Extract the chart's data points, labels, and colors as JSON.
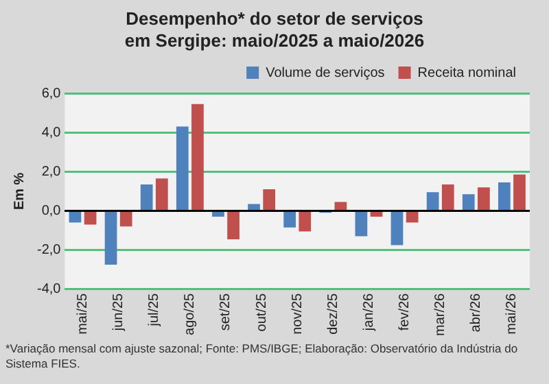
{
  "chart_data": {
    "type": "bar",
    "title": "Desempenho* do setor de serviços em Sergipe: maio/2025 a maio/2026",
    "ylabel": "Em %",
    "categories": [
      "mai/25",
      "jun/25",
      "jul/25",
      "ago/25",
      "set/25",
      "out/25",
      "nov/25",
      "dez/25",
      "jan/26",
      "fev/26",
      "mar/26",
      "abr/26",
      "mai/26"
    ],
    "series": [
      {
        "name": "Volume de serviços",
        "color": "#4f81bd",
        "values": [
          -0.6,
          -2.75,
          1.35,
          4.3,
          -0.3,
          0.35,
          -0.85,
          -0.1,
          -1.3,
          -1.75,
          0.95,
          0.85,
          1.45
        ]
      },
      {
        "name": "Receita nominal",
        "color": "#c0504d",
        "values": [
          -0.7,
          -0.8,
          1.65,
          5.45,
          -1.45,
          1.1,
          -1.05,
          0.45,
          -0.3,
          -0.6,
          1.35,
          1.2,
          1.85
        ]
      }
    ],
    "ylim": [
      -4,
      6
    ],
    "yticks": [
      {
        "value": -4,
        "label": "-4,0"
      },
      {
        "value": -2,
        "label": "-2,0"
      },
      {
        "value": 0,
        "label": "0,0"
      },
      {
        "value": 2,
        "label": "2,0"
      },
      {
        "value": 4,
        "label": "4,0"
      },
      {
        "value": 6,
        "label": "6,0"
      }
    ],
    "grid": "y",
    "legend": "top right",
    "annotations": [
      "*Variação mensal com ajuste sazonal; Fonte: PMS/IBGE; Elaboração: Observatório da Indústria do Sistema FIES."
    ]
  }
}
